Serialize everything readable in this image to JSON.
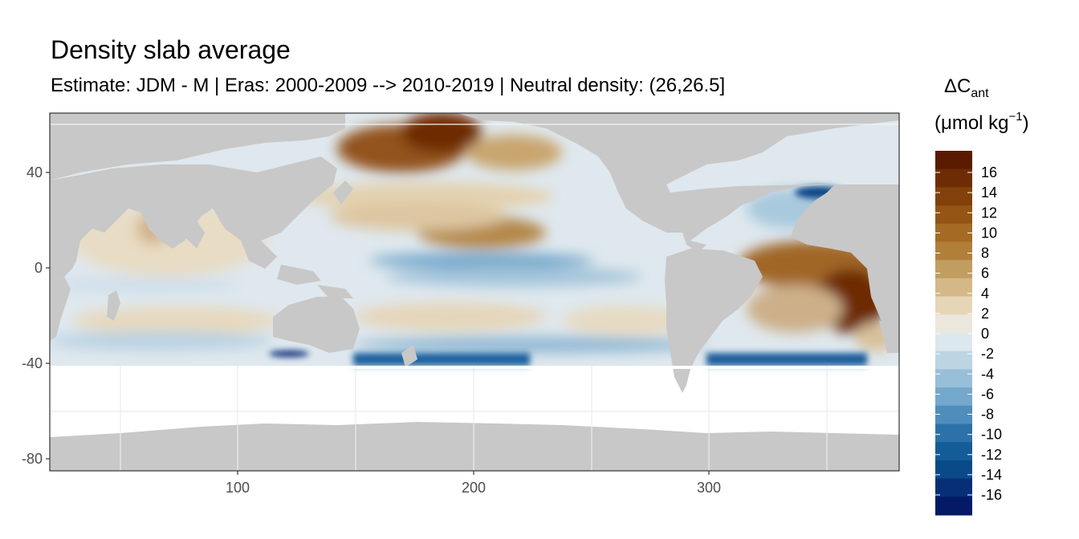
{
  "title": "Density slab average",
  "subtitle": "Estimate: JDM - M | Eras: 2000-2009 --> 2010-2019 | Neutral density: (26,26.5]",
  "axes": {
    "x_ticks": [
      "100",
      "200",
      "300"
    ],
    "y_ticks": [
      "40",
      "0",
      "-40",
      "-80"
    ]
  },
  "legend": {
    "title_main": "ΔC",
    "title_sub": "ant",
    "units_prefix": "(μmol kg",
    "units_sup": "−1",
    "units_suffix": ")",
    "labels": [
      "16",
      "14",
      "12",
      "10",
      "8",
      "6",
      "4",
      "2",
      "0",
      "-2",
      "-4",
      "-6",
      "-8",
      "-10",
      "-12",
      "-14",
      "-16"
    ],
    "colors": [
      "#5a1a00",
      "#6e2c04",
      "#82400b",
      "#935414",
      "#a56a23",
      "#b27f3a",
      "#c29d60",
      "#d4b887",
      "#e6d6b7",
      "#ece7dc",
      "#dde7ee",
      "#bdd4e3",
      "#98bfd8",
      "#74a8cc",
      "#4f8dbc",
      "#2c71a8",
      "#145c98",
      "#0a4a89",
      "#072f78",
      "#041a66"
    ]
  },
  "colors": {
    "land": "#c8c8c8",
    "grid": "#ebebeb",
    "panel_border": "#333333"
  }
}
